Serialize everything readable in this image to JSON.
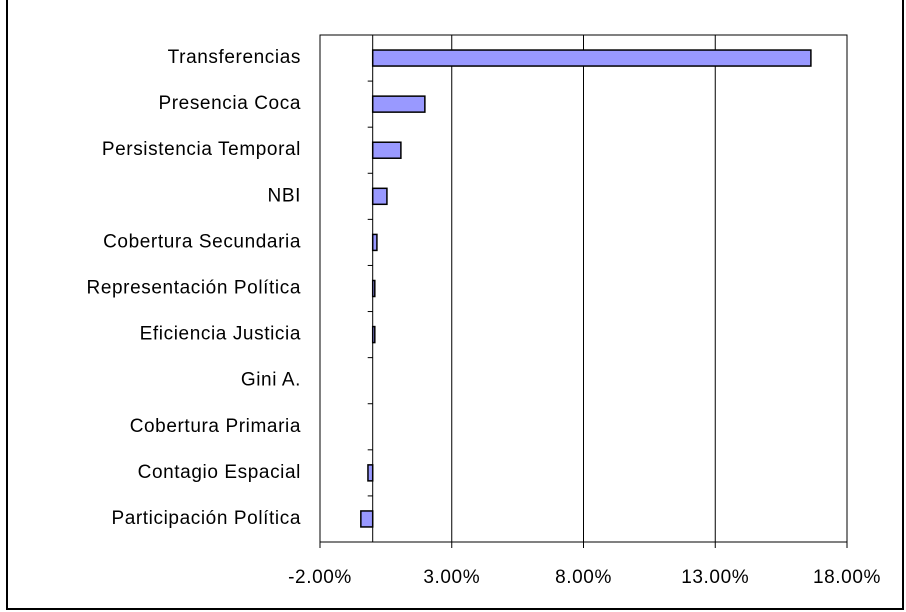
{
  "chart_data": {
    "type": "barh",
    "categories": [
      "Transferencias",
      "Presencia Coca",
      "Persistencia Temporal",
      "NBI",
      "Cobertura Secundaria",
      "Representación Política",
      "Eficiencia Justicia",
      "Gini A.",
      "Cobertura Primaria",
      "Contagio Espacial",
      "Participación Política"
    ],
    "values": [
      16.63,
      1.98,
      1.07,
      0.54,
      0.16,
      0.08,
      0.08,
      0,
      0,
      -0.18,
      -0.45
    ],
    "color": "#9999ff",
    "xlim": [
      -2,
      18
    ],
    "xticks": [
      {
        "value": -2,
        "label": "-2.00%"
      },
      {
        "value": 3,
        "label": "3.00%"
      },
      {
        "value": 8,
        "label": "8.00%"
      },
      {
        "value": 13,
        "label": "13.00%"
      },
      {
        "value": 18,
        "label": "18.00%"
      }
    ],
    "grid": true
  }
}
